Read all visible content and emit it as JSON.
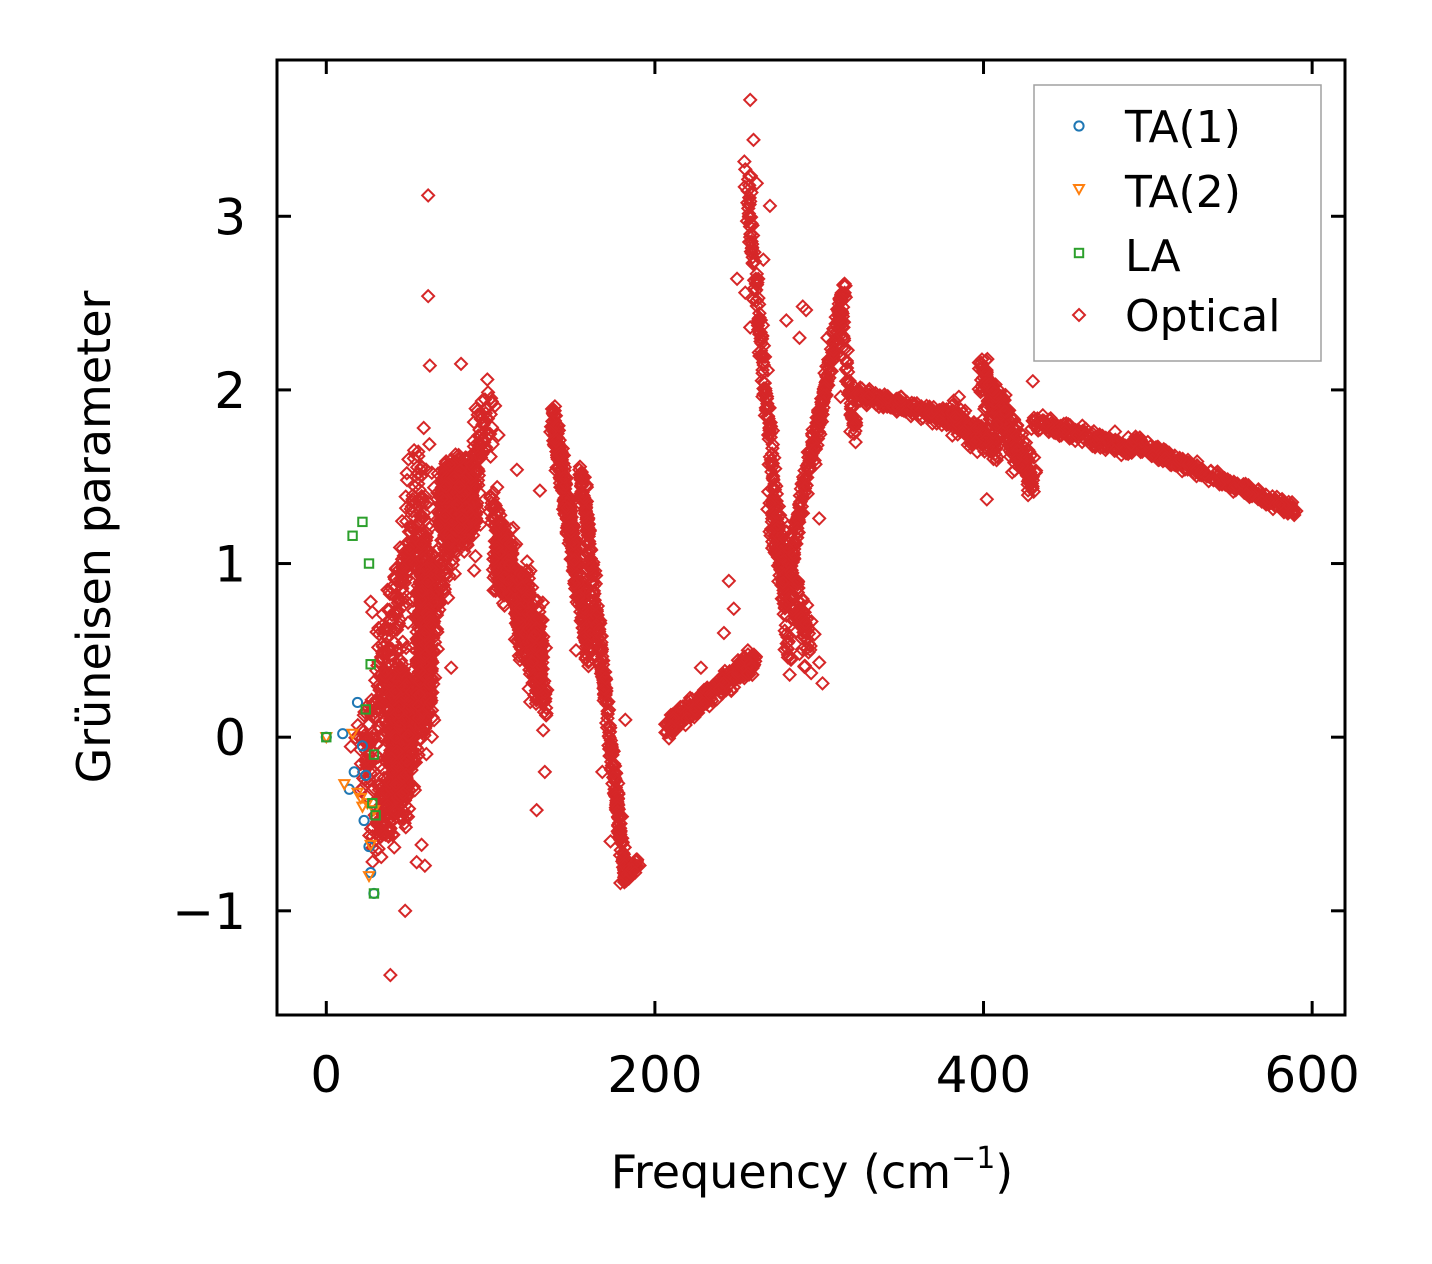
{
  "chart_data": {
    "type": "scatter",
    "xlabel": "Frequency (cm",
    "xlabel_sup": "−1",
    "xlabel_close": ")",
    "ylabel": "Grüneisen parameter",
    "xlim": [
      -30,
      620
    ],
    "ylim": [
      -1.6,
      3.9
    ],
    "x_ticks": [
      0,
      200,
      400,
      600
    ],
    "x_tick_labels": [
      "0",
      "200",
      "400",
      "600"
    ],
    "y_ticks": [
      -1,
      0,
      1,
      2,
      3
    ],
    "y_tick_labels": [
      "−1",
      "0",
      "1",
      "2",
      "3"
    ],
    "legend_position": "top-right",
    "series": [
      {
        "name": "TA(1)",
        "marker": "circle",
        "color": "#1f77b4",
        "points": [
          [
            0,
            0
          ],
          [
            10,
            0.02
          ],
          [
            17,
            -0.2
          ],
          [
            19,
            0.2
          ],
          [
            22,
            -0.05
          ],
          [
            24,
            -0.22
          ],
          [
            23,
            -0.48
          ],
          [
            26,
            -0.63
          ],
          [
            27,
            -0.78
          ],
          [
            14,
            -0.3
          ],
          [
            29,
            -0.9
          ]
        ]
      },
      {
        "name": "TA(2)",
        "marker": "triangle-down",
        "color": "#ff7f0e",
        "points": [
          [
            0,
            0
          ],
          [
            11,
            -0.27
          ],
          [
            16,
            0.02
          ],
          [
            19,
            -0.32
          ],
          [
            21,
            -0.35
          ],
          [
            22,
            -0.4
          ],
          [
            25,
            -0.38
          ],
          [
            27,
            -0.62
          ],
          [
            29,
            -0.42
          ],
          [
            26,
            -0.8
          ]
        ]
      },
      {
        "name": "LA",
        "marker": "square",
        "color": "#2ca02c",
        "points": [
          [
            0,
            0
          ],
          [
            16,
            1.16
          ],
          [
            22,
            1.24
          ],
          [
            26,
            1.0
          ],
          [
            27,
            0.42
          ],
          [
            24,
            0.16
          ],
          [
            29,
            -0.1
          ],
          [
            28,
            -0.38
          ],
          [
            30,
            -0.45
          ],
          [
            29,
            -0.9
          ]
        ]
      },
      {
        "name": "Optical",
        "marker": "diamond",
        "color": "#d62728",
        "points": [
          [
            62,
            3.12
          ],
          [
            62,
            2.54
          ],
          [
            63,
            2.14
          ],
          [
            82,
            2.15
          ],
          [
            98,
            2.06
          ],
          [
            48,
            -1.0
          ],
          [
            39,
            -1.37
          ],
          [
            128,
            -0.42
          ],
          [
            245,
            0.9
          ],
          [
            300,
            0.43
          ],
          [
            302,
            0.31
          ],
          [
            300,
            1.26
          ],
          [
            319,
            1.76
          ],
          [
            258,
            3.67
          ],
          [
            260,
            3.44
          ],
          [
            255,
            3.27
          ],
          [
            262,
            3.19
          ],
          [
            270,
            3.06
          ],
          [
            258,
            2.88
          ],
          [
            266,
            2.75
          ],
          [
            250,
            2.64
          ],
          [
            255,
            2.56
          ],
          [
            258,
            2.36
          ],
          [
            280,
            2.4
          ],
          [
            288,
            2.3
          ],
          [
            290,
            2.48
          ],
          [
            292,
            2.46
          ],
          [
            402,
            1.37
          ],
          [
            430,
            2.05
          ],
          [
            27,
            0.78
          ],
          [
            28,
            0.72
          ],
          [
            34,
            0.64
          ],
          [
            36,
            0.38
          ],
          [
            38,
            0.16
          ],
          [
            40,
            -0.2
          ],
          [
            58,
            -0.62
          ],
          [
            60,
            -0.74
          ],
          [
            55,
            -0.72
          ],
          [
            45,
            0.4
          ],
          [
            50,
            1.6
          ],
          [
            49,
            1.52
          ],
          [
            54,
            1.2
          ],
          [
            64,
            0.64
          ],
          [
            76,
            0.4
          ],
          [
            90,
            0.96
          ],
          [
            122,
            0.96
          ],
          [
            132,
            0.04
          ],
          [
            133,
            -0.2
          ],
          [
            130,
            0.34
          ],
          [
            170,
            0.34
          ],
          [
            182,
            0.1
          ],
          [
            186,
            -0.76
          ],
          [
            179,
            -0.84
          ],
          [
            188,
            -0.78
          ],
          [
            173,
            -0.6
          ],
          [
            168,
            -0.2
          ],
          [
            152,
            0.5
          ],
          [
            139,
            1.88
          ],
          [
            116,
            1.54
          ],
          [
            104,
            1.44
          ],
          [
            130,
            1.42
          ],
          [
            210,
            0.06
          ],
          [
            220,
            0.2
          ],
          [
            228,
            0.4
          ],
          [
            242,
            0.6
          ],
          [
            248,
            0.74
          ],
          [
            282,
            0.36
          ],
          [
            288,
            0.48
          ],
          [
            298,
            1.66
          ],
          [
            305,
            2.3
          ],
          [
            313,
            1.96
          ],
          [
            316,
            2.6
          ],
          [
            322,
            1.8
          ],
          [
            330,
            1.96
          ],
          [
            350,
            1.96
          ],
          [
            385,
            1.96
          ],
          [
            395,
            1.7
          ],
          [
            408,
            1.8
          ],
          [
            420,
            1.6
          ],
          [
            430,
            1.5
          ],
          [
            445,
            1.76
          ],
          [
            460,
            1.7
          ],
          [
            480,
            1.76
          ],
          [
            500,
            1.7
          ],
          [
            520,
            1.6
          ],
          [
            540,
            1.48
          ],
          [
            560,
            1.4
          ],
          [
            580,
            1.34
          ],
          [
            588,
            1.3
          ]
        ]
      }
    ],
    "clusters": [
      {
        "xc": 45,
        "xs": 8,
        "yc": 0.0,
        "ys": 0.45,
        "n": 600
      },
      {
        "xc": 60,
        "xs": 6,
        "yc": 0.6,
        "ys": 0.6,
        "n": 500
      },
      {
        "xc": 80,
        "xs": 10,
        "yc": 1.35,
        "ys": 0.22,
        "n": 1300
      },
      {
        "xc": 108,
        "xs": 6,
        "yc": 1.0,
        "ys": 0.2,
        "n": 250
      },
      {
        "xc": 120,
        "xs": 5,
        "yc": 0.72,
        "ys": 0.25,
        "n": 250
      },
      {
        "xc": 128,
        "xs": 5,
        "yc": 0.5,
        "ys": 0.3,
        "n": 200
      }
    ],
    "bands": [
      {
        "x1": 22,
        "y1": -0.2,
        "x2": 60,
        "y2": 1.45,
        "width": 14,
        "spread": 0.35,
        "n": 300
      },
      {
        "x1": 30,
        "y1": -0.6,
        "x2": 58,
        "y2": 0.2,
        "width": 10,
        "spread": 0.25,
        "n": 250
      },
      {
        "x1": 62,
        "y1": 0.7,
        "x2": 100,
        "y2": 1.9,
        "width": 10,
        "spread": 0.2,
        "n": 250
      },
      {
        "x1": 100,
        "y1": 1.35,
        "x2": 134,
        "y2": 0.2,
        "width": 4,
        "spread": 0.12,
        "n": 200
      },
      {
        "x1": 138,
        "y1": 1.85,
        "x2": 160,
        "y2": 0.5,
        "width": 4,
        "spread": 0.14,
        "n": 380
      },
      {
        "x1": 155,
        "y1": 1.55,
        "x2": 182,
        "y2": -0.82,
        "width": 3,
        "spread": 0.08,
        "n": 320
      },
      {
        "x1": 182,
        "y1": -0.8,
        "x2": 190,
        "y2": -0.72,
        "width": 2,
        "spread": 0.04,
        "n": 30
      },
      {
        "x1": 207,
        "y1": 0.06,
        "x2": 262,
        "y2": 0.46,
        "width": 3,
        "spread": 0.07,
        "n": 240
      },
      {
        "x1": 256,
        "y1": 3.2,
        "x2": 282,
        "y2": 0.4,
        "width": 4,
        "spread": 0.14,
        "n": 220
      },
      {
        "x1": 270,
        "y1": 1.3,
        "x2": 295,
        "y2": 0.5,
        "width": 6,
        "spread": 0.2,
        "n": 160
      },
      {
        "x1": 282,
        "y1": 1.0,
        "x2": 316,
        "y2": 2.58,
        "width": 3,
        "spread": 0.1,
        "n": 240
      },
      {
        "x1": 312,
        "y1": 2.5,
        "x2": 322,
        "y2": 1.75,
        "width": 3,
        "spread": 0.08,
        "n": 60
      },
      {
        "x1": 322,
        "y1": 1.98,
        "x2": 388,
        "y2": 1.82,
        "width": 3,
        "spread": 0.05,
        "n": 240
      },
      {
        "x1": 380,
        "y1": 1.85,
        "x2": 408,
        "y2": 1.68,
        "width": 4,
        "spread": 0.1,
        "n": 140
      },
      {
        "x1": 398,
        "y1": 2.1,
        "x2": 430,
        "y2": 1.5,
        "width": 6,
        "spread": 0.14,
        "n": 260
      },
      {
        "x1": 430,
        "y1": 1.82,
        "x2": 490,
        "y2": 1.66,
        "width": 3,
        "spread": 0.05,
        "n": 200
      },
      {
        "x1": 490,
        "y1": 1.7,
        "x2": 590,
        "y2": 1.3,
        "width": 2,
        "spread": 0.04,
        "n": 300
      }
    ]
  }
}
